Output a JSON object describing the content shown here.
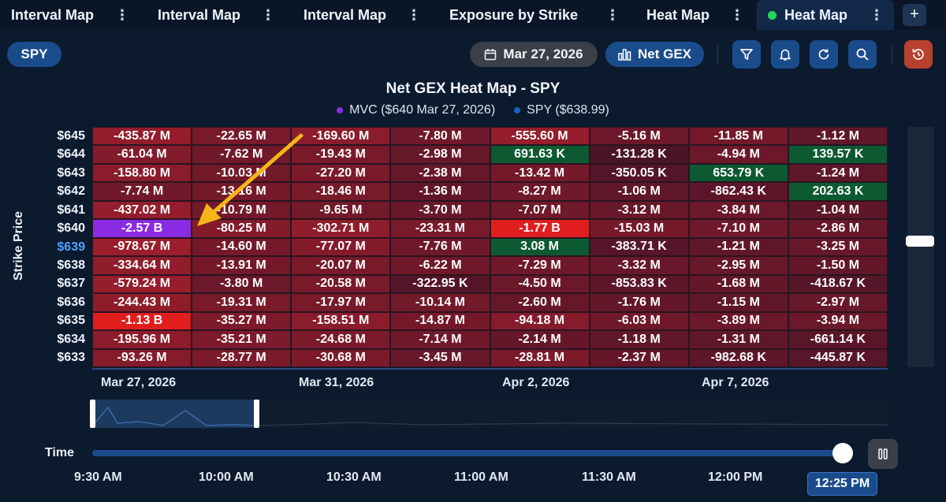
{
  "tabs": [
    {
      "label": "Interval Map",
      "active": false
    },
    {
      "label": "Interval Map",
      "active": false
    },
    {
      "label": "Interval Map",
      "active": false
    },
    {
      "label": "Exposure by Strike",
      "active": false
    },
    {
      "label": "Heat Map",
      "active": false
    },
    {
      "label": "Heat Map",
      "active": true
    }
  ],
  "toolbar": {
    "symbol": "SPY",
    "date": "Mar 27, 2026",
    "metric": "Net GEX"
  },
  "chart": {
    "title": "Net GEX Heat Map - SPY",
    "legend": [
      {
        "label": "MVC ($640 Mar 27, 2026)",
        "color": "#8b2be2"
      },
      {
        "label": "SPY ($638.99)",
        "color": "#1f5fbf"
      }
    ],
    "ylabel": "Strike Price",
    "strikes": [
      "$645",
      "$644",
      "$643",
      "$642",
      "$641",
      "$640",
      "$639",
      "$638",
      "$637",
      "$636",
      "$635",
      "$634",
      "$633"
    ],
    "spot_strike": "$639",
    "x_ticks": [
      "Mar 27, 2026",
      "Mar 31, 2026",
      "Apr 2, 2026",
      "Apr 7, 2026"
    ]
  },
  "chart_data": {
    "type": "heatmap",
    "title": "Net GEX Heat Map - SPY",
    "ylabel": "Strike Price",
    "y": [
      "$645",
      "$644",
      "$643",
      "$642",
      "$641",
      "$640",
      "$639",
      "$638",
      "$637",
      "$636",
      "$635",
      "$634",
      "$633"
    ],
    "x": [
      "Mar 27, 2026",
      "",
      "Mar 31, 2026",
      "",
      "Apr 2, 2026",
      "",
      "Apr 7, 2026",
      ""
    ],
    "values": [
      [
        "-435.87 M",
        "-22.65 M",
        "-169.60 M",
        "-7.80 M",
        "-555.60 M",
        "-5.16 M",
        "-11.85 M",
        "-1.12 M"
      ],
      [
        "-61.04 M",
        "-7.62 M",
        "-19.43 M",
        "-2.98 M",
        "691.63 K",
        "-131.28 K",
        "-4.94 M",
        "139.57 K"
      ],
      [
        "-158.80 M",
        "-10.03 M",
        "-27.20 M",
        "-2.38 M",
        "-13.42 M",
        "-350.05 K",
        "653.79 K",
        "-1.24 M"
      ],
      [
        "-7.74 M",
        "-13.16 M",
        "-18.46 M",
        "-1.36 M",
        "-8.27 M",
        "-1.06 M",
        "-862.43 K",
        "202.63 K"
      ],
      [
        "-437.02 M",
        "-10.79 M",
        "-9.65 M",
        "-3.70 M",
        "-7.07 M",
        "-3.12 M",
        "-3.84 M",
        "-1.04 M"
      ],
      [
        "-2.57 B",
        "-80.25 M",
        "-302.71 M",
        "-23.31 M",
        "-1.77 B",
        "-15.03 M",
        "-7.10 M",
        "-2.86 M"
      ],
      [
        "-978.67 M",
        "-14.60 M",
        "-77.07 M",
        "-7.76 M",
        "3.08 M",
        "-383.71 K",
        "-1.21 M",
        "-3.25 M"
      ],
      [
        "-334.64 M",
        "-13.91 M",
        "-20.07 M",
        "-6.22 M",
        "-7.29 M",
        "-3.32 M",
        "-2.95 M",
        "-1.50 M"
      ],
      [
        "-579.24 M",
        "-3.80 M",
        "-20.58 M",
        "-322.95 K",
        "-4.50 M",
        "-853.83 K",
        "-1.68 M",
        "-418.67 K"
      ],
      [
        "-244.43 M",
        "-19.31 M",
        "-17.97 M",
        "-10.14 M",
        "-2.60 M",
        "-1.76 M",
        "-1.15 M",
        "-2.97 M"
      ],
      [
        "-1.13 B",
        "-35.27 M",
        "-158.51 M",
        "-14.87 M",
        "-94.18 M",
        "-6.03 M",
        "-3.89 M",
        "-3.94 M"
      ],
      [
        "-195.96 M",
        "-35.21 M",
        "-24.68 M",
        "-7.14 M",
        "-2.14 M",
        "-1.18 M",
        "-1.31 M",
        "-661.14 K"
      ],
      [
        "-93.26 M",
        "-28.77 M",
        "-30.68 M",
        "-3.45 M",
        "-28.81 M",
        "-2.37 M",
        "-982.68 K",
        "-445.87 K"
      ]
    ],
    "numeric": [
      [
        -435870000.0,
        -22650000.0,
        -169600000.0,
        -7800000.0,
        -555600000.0,
        -5160000.0,
        -11850000.0,
        -1120000.0
      ],
      [
        -61040000.0,
        -7620000.0,
        -19430000.0,
        -2980000.0,
        691630.0,
        -131280.0,
        -4940000.0,
        139570.0
      ],
      [
        -158800000.0,
        -10030000.0,
        -27200000.0,
        -2380000.0,
        -13420000.0,
        -350050.0,
        653790.0,
        -1240000.0
      ],
      [
        -7740000.0,
        -13160000.0,
        -18460000.0,
        -1360000.0,
        -8270000.0,
        -1060000.0,
        -862430.0,
        202630.0
      ],
      [
        -437020000.0,
        -10790000.0,
        -9650000.0,
        -3700000.0,
        -7070000.0,
        -3120000.0,
        -3840000.0,
        -1040000.0
      ],
      [
        -2570000000.0,
        -80250000.0,
        -302710000.0,
        -23310000.0,
        -1770000000.0,
        -15030000.0,
        -7100000.0,
        -2860000.0
      ],
      [
        -978670000.0,
        -14600000.0,
        -77070000.0,
        -7760000.0,
        3080000.0,
        -383710.0,
        -1210000.0,
        -3250000.0
      ],
      [
        -334640000.0,
        -13910000.0,
        -20070000.0,
        -6220000.0,
        -7290000.0,
        -3320000.0,
        -2950000.0,
        -1500000.0
      ],
      [
        -579240000.0,
        -3800000.0,
        -20580000.0,
        -322950.0,
        -4500000.0,
        -853830.0,
        -1680000.0,
        -418670.0
      ],
      [
        -244430000.0,
        -19310000.0,
        -17970000.0,
        -10140000.0,
        -2600000.0,
        -1760000.0,
        -1150000.0,
        -2970000.0
      ],
      [
        -1130000000.0,
        -35270000.0,
        -158510000.0,
        -14870000.0,
        -94180000.0,
        -6030000.0,
        -3890000.0,
        -3940000.0
      ],
      [
        -195960000.0,
        -35210000.0,
        -24680000.0,
        -7140000.0,
        -2140000.0,
        -1180000.0,
        -1310000.0,
        -661140.0
      ],
      [
        -93260000.0,
        -28770000.0,
        -30680000.0,
        -3450000.0,
        -28810000.0,
        -2370000.0,
        -982680.0,
        -445870.0
      ]
    ],
    "highlight": {
      "mvc": [
        5,
        0
      ]
    },
    "colors": {
      "positive": "#0d5a32",
      "negative_strong": "#e01e1e",
      "negative_mid": "#8a1a2a",
      "negative_weak": "#4a1428",
      "mvc": "#8b2be2"
    }
  },
  "time": {
    "label": "Time",
    "ticks": [
      "9:30 AM",
      "10:00 AM",
      "10:30 AM",
      "11:00 AM",
      "11:30 AM",
      "12:00 PM"
    ],
    "current": "12:25 PM",
    "progress": 0.99
  }
}
